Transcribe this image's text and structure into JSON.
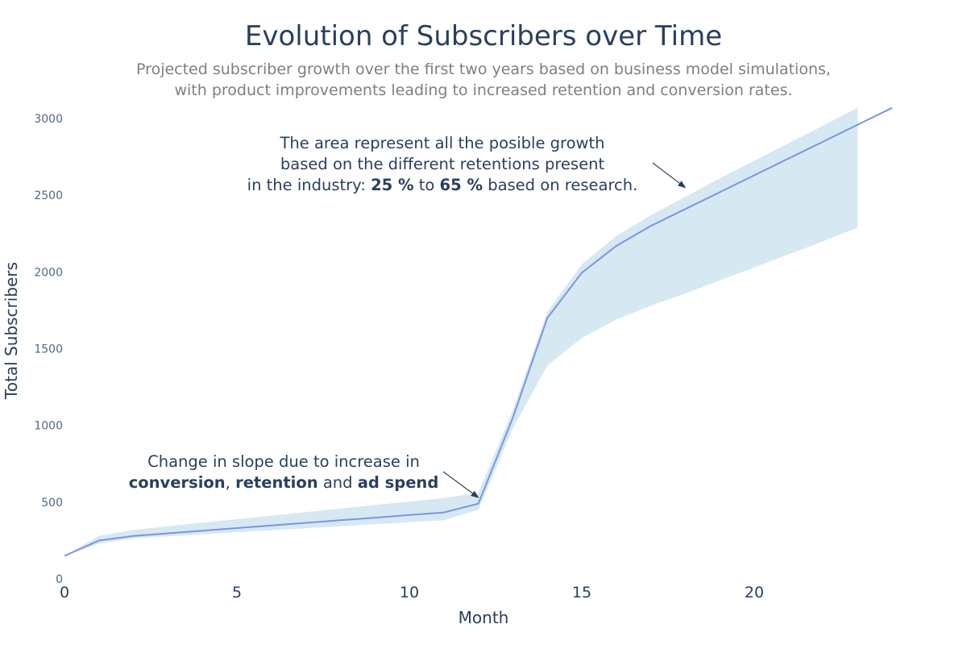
{
  "chart_data": {
    "type": "line",
    "title": "Evolution of Subscribers over Time",
    "subtitle_lines": [
      "Projected subscriber growth over the first two years based on business model simulations,",
      "with product improvements leading to increased retention and conversion rates."
    ],
    "xlabel": "Month",
    "ylabel": "Total Subscribers",
    "xlim": [
      0,
      24.3
    ],
    "ylim": [
      0,
      3000
    ],
    "x_ticks": [
      0,
      5,
      10,
      15,
      20
    ],
    "y_ticks": [
      0,
      500,
      1000,
      1500,
      2000,
      2500,
      3000
    ],
    "grid": false,
    "colors": {
      "line": "#7b93e8",
      "band": "#d6e9f2",
      "arrow": "#2a3f5f"
    },
    "series": [
      {
        "x": [
          0,
          1,
          2,
          3,
          4,
          5,
          6,
          7,
          8,
          9,
          10,
          11,
          12,
          13,
          14,
          15,
          16,
          17,
          18,
          19,
          20,
          21,
          22,
          23,
          24
        ],
        "values": [
          150,
          250,
          280,
          297,
          314,
          331,
          348,
          365,
          382,
          399,
          416,
          433,
          490,
          1050,
          1700,
          1995,
          2170,
          2300,
          2410,
          2520,
          2630,
          2740,
          2850,
          2960,
          3070
        ]
      }
    ],
    "band": {
      "x": [
        0,
        1,
        2,
        3,
        4,
        5,
        6,
        7,
        8,
        9,
        10,
        11,
        12,
        13,
        14,
        15,
        16,
        17,
        18,
        19,
        20,
        21,
        22,
        23
      ],
      "upper": [
        150,
        280,
        320,
        343,
        366,
        389,
        412,
        435,
        458,
        481,
        504,
        527,
        560,
        1100,
        1740,
        2050,
        2235,
        2370,
        2490,
        2610,
        2725,
        2840,
        2955,
        3070
      ],
      "lower": [
        150,
        230,
        265,
        278,
        291,
        304,
        317,
        330,
        343,
        356,
        369,
        382,
        450,
        980,
        1390,
        1570,
        1690,
        1780,
        1860,
        1945,
        2030,
        2115,
        2200,
        2290
      ]
    },
    "annotations": [
      {
        "lines": [
          [
            {
              "text": "The area represent all the posible growth"
            }
          ],
          [
            {
              "text": "based on the different retentions present"
            }
          ],
          [
            {
              "text": "in the industry: "
            },
            {
              "text": "25 %",
              "bold": true
            },
            {
              "text": " to "
            },
            {
              "text": "65 %",
              "bold": true
            },
            {
              "text": " based on research."
            }
          ]
        ],
        "arrow_to": [
          18,
          2550
        ]
      },
      {
        "lines": [
          [
            {
              "text": "Change in slope due to increase in"
            }
          ],
          [
            {
              "text": "conversion",
              "bold": true
            },
            {
              "text": ", "
            },
            {
              "text": "retention",
              "bold": true
            },
            {
              "text": " and "
            },
            {
              "text": "ad spend",
              "bold": true
            }
          ]
        ],
        "arrow_to": [
          12,
          530
        ]
      }
    ]
  }
}
